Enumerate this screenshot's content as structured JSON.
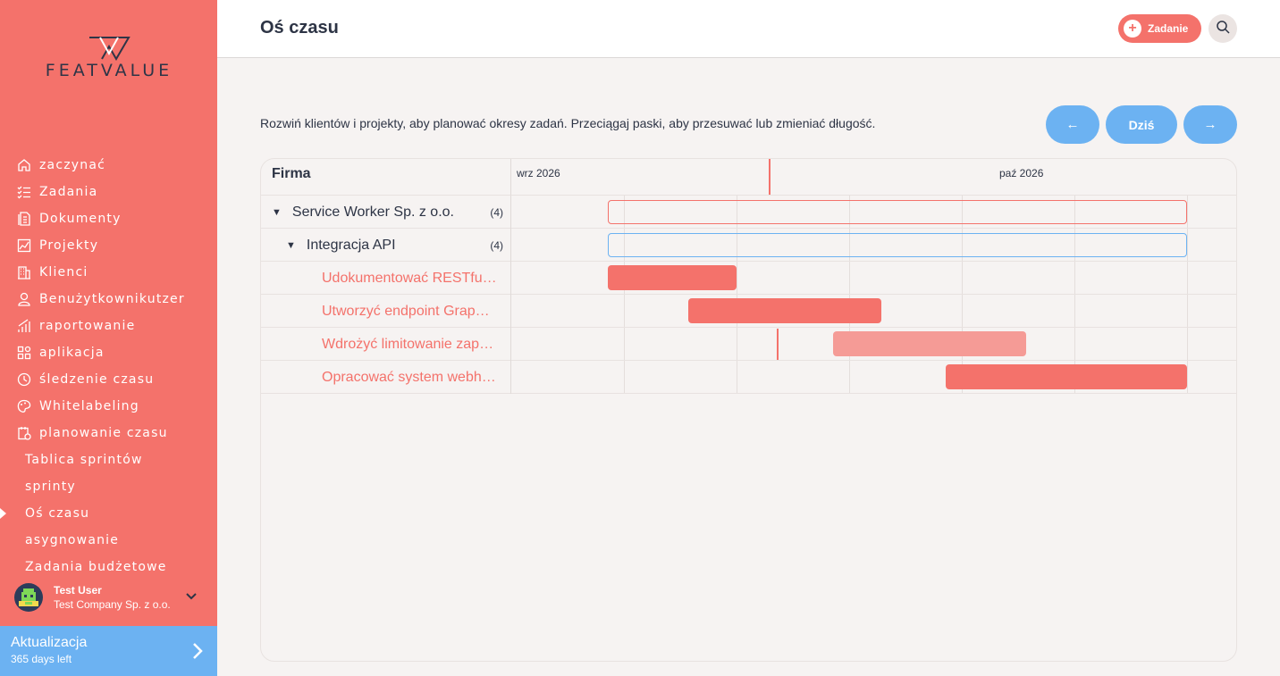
{
  "sidebar": {
    "logo_text": "FEATVALUE",
    "items": [
      {
        "label": "zaczynać",
        "icon": "home-icon"
      },
      {
        "label": "Zadania",
        "icon": "checklist-icon"
      },
      {
        "label": "Dokumenty",
        "icon": "documents-icon"
      },
      {
        "label": "Projekty",
        "icon": "chart-icon"
      },
      {
        "label": "Klienci",
        "icon": "building-icon"
      },
      {
        "label": "Benużytkownikutzer",
        "icon": "user-icon"
      },
      {
        "label": "raportowanie",
        "icon": "report-icon"
      },
      {
        "label": "aplikacja",
        "icon": "apps-icon"
      },
      {
        "label": "śledzenie czasu",
        "icon": "timer-icon"
      },
      {
        "label": "Whitelabeling",
        "icon": "palette-icon"
      },
      {
        "label": "planowanie czasu",
        "icon": "calendar-icon"
      }
    ],
    "sub_items": [
      {
        "label": "Tablica sprintów"
      },
      {
        "label": "sprinty"
      },
      {
        "label": "Oś czasu"
      },
      {
        "label": "asygnowanie"
      },
      {
        "label": "Zadania budżetowe"
      }
    ],
    "user": {
      "name": "Test User",
      "company": "Test Company Sp. z o.o."
    },
    "upgrade": {
      "title": "Aktualizacja",
      "subtitle": "365 days left"
    }
  },
  "header": {
    "title": "Oś czasu",
    "add_label": "Zadanie"
  },
  "main": {
    "hint": "Rozwiń klientów i projekty, aby planować okresy zadań. Przeciągaj paski, aby przesuwać lub zmieniać długość.",
    "nav": {
      "prev": "←",
      "today": "Dziś",
      "next": "→"
    },
    "gantt": {
      "column_header": "Firma",
      "months": [
        "wrz 2026",
        "paź 2026"
      ],
      "rows": [
        {
          "label": "Service Worker Sp. z o.o.",
          "count": "(4)",
          "type": "client"
        },
        {
          "label": "Integracja API",
          "count": "(4)",
          "type": "project"
        },
        {
          "label": "Udokumentować RESTful API",
          "type": "task"
        },
        {
          "label": "Utworzyć endpoint GraphQL",
          "type": "task"
        },
        {
          "label": "Wdrożyć limitowanie zapytań",
          "type": "task"
        },
        {
          "label": "Opracować system webhooków",
          "type": "task"
        }
      ]
    }
  },
  "colors": {
    "accent": "#f4726b",
    "blue": "#6cb2f2",
    "text": "#2d3445"
  }
}
